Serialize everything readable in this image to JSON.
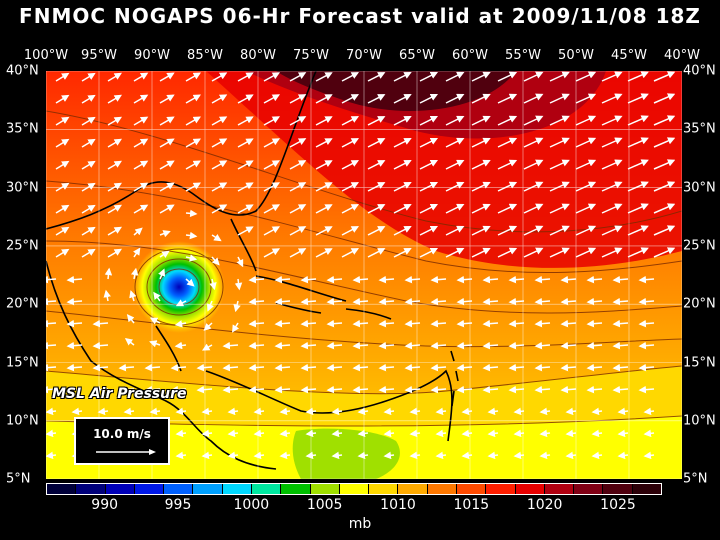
{
  "title": "FNMOC NOGAPS 06-Hr Forecast valid at 2009/11/08 18Z",
  "longitude_labels": [
    "100°W",
    "95°W",
    "90°W",
    "85°W",
    "80°W",
    "75°W",
    "70°W",
    "65°W",
    "60°W",
    "55°W",
    "50°W",
    "45°W",
    "40°W"
  ],
  "latitude_labels": [
    "40°N",
    "35°N",
    "30°N",
    "25°N",
    "20°N",
    "15°N",
    "10°N",
    "5°N"
  ],
  "field_label": "MSL Air Pressure",
  "vector_scale_label": "10.0 m/s",
  "colorbar": {
    "colors": [
      "#00003a",
      "#00007a",
      "#0000b8",
      "#0018e8",
      "#0060ff",
      "#00a0ff",
      "#00d8ff",
      "#00e8a0",
      "#00c000",
      "#a0e000",
      "#ffff00",
      "#ffd800",
      "#ffaa00",
      "#ff7800",
      "#ff4a00",
      "#ff1e00",
      "#e80000",
      "#b00010",
      "#800014",
      "#50000e",
      "#2c0008"
    ],
    "labels": [
      "990",
      "995",
      "1000",
      "1005",
      "1010",
      "1015",
      "1020",
      "1025"
    ],
    "units": "mb"
  },
  "accent_colors": {
    "background": "#000000",
    "contour": "#7a2a00",
    "coast": "#000000",
    "grid": "#ffffff",
    "vector": "#ffffff"
  }
}
